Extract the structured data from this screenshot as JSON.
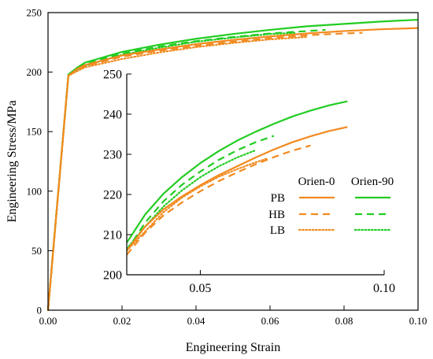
{
  "chart_data": [
    {
      "type": "line",
      "title": "",
      "xlabel": "Engineering Strain",
      "ylabel": "Engineering Stress/MPa",
      "xlim": [
        0,
        0.1
      ],
      "ylim": [
        0,
        250
      ],
      "x_ticks": [
        "0.00",
        "0.02",
        "0.04",
        "0.06",
        "0.08",
        "0.10"
      ],
      "y_ticks": [
        "0",
        "50",
        "100",
        "150",
        "200",
        "250"
      ],
      "grid": false,
      "colors": {
        "orien0": "#f28a1f",
        "orien90": "#22cc22"
      },
      "series": [
        {
          "group": "Orien-0",
          "variant": "PB",
          "style": "solid",
          "x": [
            0,
            0.0055,
            0.008,
            0.01,
            0.02,
            0.03,
            0.04,
            0.05,
            0.06,
            0.07,
            0.08,
            0.09,
            0.1
          ],
          "y": [
            0,
            197,
            203,
            206,
            214,
            219,
            223.5,
            227,
            230,
            232.5,
            234.5,
            236,
            237
          ]
        },
        {
          "group": "Orien-0",
          "variant": "HB",
          "style": "dashed",
          "x": [
            0,
            0.0055,
            0.008,
            0.01,
            0.02,
            0.03,
            0.04,
            0.05,
            0.06,
            0.07,
            0.08,
            0.085
          ],
          "y": [
            0,
            197,
            202,
            205,
            213,
            218,
            222,
            225.5,
            228.5,
            231,
            232.5,
            233
          ]
        },
        {
          "group": "Orien-0",
          "variant": "LB",
          "style": "dotted",
          "x": [
            0,
            0.0055,
            0.008,
            0.01,
            0.02,
            0.03,
            0.04,
            0.05,
            0.06,
            0.07
          ],
          "y": [
            0,
            197,
            201,
            204,
            211,
            216.5,
            221,
            224.5,
            227.5,
            229.5
          ]
        },
        {
          "group": "Orien-90",
          "variant": "PB",
          "style": "solid",
          "x": [
            0,
            0.0055,
            0.008,
            0.01,
            0.02,
            0.03,
            0.04,
            0.05,
            0.06,
            0.07,
            0.08,
            0.09,
            0.1
          ],
          "y": [
            0,
            198,
            204,
            208,
            217,
            223,
            228,
            232,
            235.5,
            238.5,
            240.5,
            242.5,
            244
          ]
        },
        {
          "group": "Orien-90",
          "variant": "HB",
          "style": "dashed",
          "x": [
            0,
            0.0055,
            0.008,
            0.01,
            0.02,
            0.03,
            0.04,
            0.05,
            0.06,
            0.07,
            0.075
          ],
          "y": [
            0,
            197,
            203,
            207,
            215.5,
            221.5,
            226,
            229.5,
            232.5,
            234.5,
            235.5
          ]
        },
        {
          "group": "Orien-90",
          "variant": "LB",
          "style": "dotted",
          "x": [
            0,
            0.0055,
            0.008,
            0.01,
            0.02,
            0.03,
            0.04,
            0.05,
            0.06,
            0.067
          ],
          "y": [
            0,
            197,
            202,
            205.5,
            214.5,
            220.5,
            225.5,
            229,
            232,
            233
          ]
        }
      ]
    },
    {
      "type": "line",
      "title": "",
      "role": "inset",
      "xlim": [
        0.03,
        0.1
      ],
      "ylim": [
        200,
        250
      ],
      "x_ticks": [
        "0.05",
        "0.10"
      ],
      "y_ticks": [
        "200",
        "210",
        "220",
        "230",
        "240",
        "250"
      ],
      "x_tick_values": [
        0.05,
        0.1
      ],
      "y_tick_values": [
        200,
        210,
        220,
        230,
        240,
        250
      ],
      "series": [
        {
          "group": "Orien-0",
          "variant": "PB",
          "style": "solid",
          "x": [
            0.03,
            0.035,
            0.04,
            0.045,
            0.05,
            0.055,
            0.06,
            0.065,
            0.07,
            0.075,
            0.08,
            0.085,
            0.09
          ],
          "y": [
            206,
            212,
            216.3,
            219.5,
            222.3,
            224.8,
            227,
            229.2,
            231.2,
            233,
            234.5,
            235.8,
            236.8
          ]
        },
        {
          "group": "Orien-0",
          "variant": "HB",
          "style": "dashed",
          "x": [
            0.03,
            0.035,
            0.04,
            0.045,
            0.05,
            0.055,
            0.06,
            0.065,
            0.07,
            0.075,
            0.08
          ],
          "y": [
            205,
            210.5,
            214.8,
            218,
            220.8,
            223.3,
            225.5,
            227.5,
            229.3,
            230.9,
            232.2
          ]
        },
        {
          "group": "Orien-0",
          "variant": "LB",
          "style": "dotted",
          "x": [
            0.03,
            0.035,
            0.04,
            0.045,
            0.05,
            0.055,
            0.06,
            0.065,
            0.068
          ],
          "y": [
            206,
            210.8,
            215.6,
            219.2,
            222,
            224.4,
            226.3,
            228,
            228.9
          ]
        },
        {
          "group": "Orien-90",
          "variant": "PB",
          "style": "solid",
          "x": [
            0.03,
            0.035,
            0.04,
            0.045,
            0.05,
            0.055,
            0.06,
            0.065,
            0.07,
            0.075,
            0.08,
            0.085,
            0.09
          ],
          "y": [
            208,
            215,
            220.2,
            224.3,
            227.8,
            230.8,
            233.4,
            235.6,
            237.6,
            239.4,
            240.9,
            242.2,
            243.2
          ]
        },
        {
          "group": "Orien-90",
          "variant": "HB",
          "style": "dashed",
          "x": [
            0.03,
            0.035,
            0.04,
            0.045,
            0.05,
            0.055,
            0.06,
            0.065,
            0.07
          ],
          "y": [
            206,
            213,
            218.3,
            222.4,
            225.7,
            228.6,
            231,
            233,
            234.6
          ]
        },
        {
          "group": "Orien-90",
          "variant": "LB",
          "style": "dotted",
          "x": [
            0.03,
            0.035,
            0.04,
            0.045,
            0.05,
            0.055,
            0.06,
            0.065
          ],
          "y": [
            206.5,
            212,
            217,
            221,
            224.3,
            227,
            229.2,
            231
          ]
        }
      ],
      "legend": {
        "placement": "inside-lower-right",
        "columns": [
          "Orien-0",
          "Orien-90"
        ],
        "rows": [
          "PB",
          "HB",
          "LB"
        ]
      }
    }
  ]
}
